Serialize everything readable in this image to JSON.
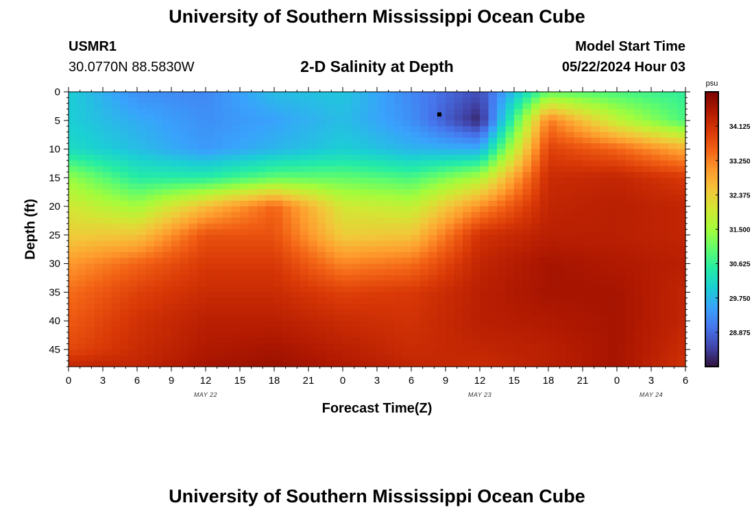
{
  "header": {
    "title": "University of Southern Mississippi Ocean Cube",
    "station_id": "USMR1",
    "station_coords": "30.0770N  88.5830W",
    "subtitle": "2-D Salinity at Depth",
    "model_start_label": "Model Start Time",
    "model_start_value": "05/22/2024 Hour 03"
  },
  "footer": {
    "title": "University of Southern Mississippi Ocean Cube"
  },
  "chart_data": {
    "type": "heatmap",
    "title": "2-D Salinity at Depth",
    "xlabel": "Forecast Time(Z)",
    "ylabel": "Depth (ft)",
    "x_range_hours": [
      0,
      54
    ],
    "x_tick_labels": [
      "0",
      "3",
      "6",
      "9",
      "12",
      "15",
      "18",
      "21",
      "0",
      "3",
      "6",
      "9",
      "12",
      "15",
      "18",
      "21",
      "0",
      "3",
      "6"
    ],
    "date_labels": [
      {
        "label": "MAY 22",
        "hour": 12
      },
      {
        "label": "MAY 23",
        "hour": 36
      },
      {
        "label": "MAY 24",
        "hour": 51
      }
    ],
    "y_range_ft": [
      0,
      48
    ],
    "y_reversed": true,
    "y_tick_labels": [
      "0",
      "5",
      "10",
      "15",
      "20",
      "25",
      "30",
      "35",
      "40",
      "45"
    ],
    "colorbar": {
      "unit": "psu",
      "range": [
        28.0,
        35.0
      ],
      "tick_labels": [
        "34.125",
        "33.250",
        "32.375",
        "31.500",
        "30.625",
        "29.750",
        "28.875"
      ],
      "colors": [
        "#30123b",
        "#4145ab",
        "#4675ed",
        "#39a2fc",
        "#1bcfd4",
        "#24eca6",
        "#61fc6c",
        "#a4fc3b",
        "#d1e834",
        "#f3c63a",
        "#fe9b2d",
        "#f36315",
        "#d93806",
        "#b11901",
        "#7a0402"
      ]
    },
    "x_hours": [
      0,
      6,
      12,
      18,
      24,
      30,
      36,
      42,
      48,
      54
    ],
    "y_depths_ft": [
      0,
      5,
      10,
      15,
      20,
      25,
      30,
      35,
      40,
      45,
      48
    ],
    "salinity_grid": [
      [
        30.0,
        29.3,
        29.2,
        29.8,
        29.9,
        29.2,
        28.6,
        31.0,
        30.8,
        30.6
      ],
      [
        30.0,
        29.6,
        29.3,
        29.5,
        29.8,
        29.3,
        28.2,
        33.3,
        31.8,
        30.8
      ],
      [
        30.2,
        29.8,
        29.4,
        29.7,
        30.0,
        29.7,
        29.6,
        33.9,
        33.5,
        32.8
      ],
      [
        31.4,
        30.5,
        30.5,
        31.0,
        31.0,
        30.8,
        31.6,
        34.2,
        34.3,
        34.0
      ],
      [
        32.0,
        31.5,
        32.6,
        33.5,
        32.0,
        31.8,
        33.1,
        34.3,
        34.4,
        34.3
      ],
      [
        32.4,
        32.5,
        33.7,
        33.7,
        32.4,
        32.5,
        34.1,
        34.4,
        34.4,
        34.3
      ],
      [
        33.0,
        33.5,
        34.0,
        34.0,
        33.2,
        33.4,
        34.3,
        34.6,
        34.5,
        34.4
      ],
      [
        33.4,
        33.9,
        34.2,
        34.2,
        33.9,
        34.0,
        34.4,
        34.6,
        34.6,
        34.3
      ],
      [
        33.6,
        34.1,
        34.4,
        34.4,
        34.2,
        34.1,
        34.4,
        34.5,
        34.6,
        34.3
      ],
      [
        33.8,
        34.2,
        34.5,
        34.6,
        34.4,
        34.2,
        34.3,
        34.4,
        34.6,
        34.2
      ],
      [
        34.3,
        34.3,
        34.6,
        34.7,
        34.5,
        34.3,
        34.2,
        34.4,
        34.6,
        34.1
      ]
    ]
  }
}
